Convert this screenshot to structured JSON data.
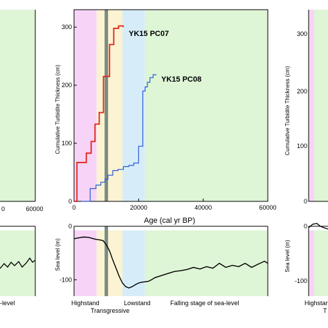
{
  "chart_data": [
    {
      "type": "line",
      "title": "",
      "xlabel": "Age (cal yr BP)",
      "ylabel": "Cumulative Turbidite Thickness (cm)",
      "xlim": [
        0,
        60000
      ],
      "ylim": [
        0,
        330
      ],
      "x_ticks": [
        0,
        20000,
        40000,
        60000
      ],
      "y_ticks": [
        0,
        100,
        200,
        300
      ],
      "grid": false,
      "series": [
        {
          "name": "YK15 PC07",
          "color": "#e0231a",
          "x": [
            0,
            900,
            900,
            3800,
            3800,
            5300,
            5300,
            6500,
            6500,
            7800,
            7800,
            9100,
            9100,
            11000,
            11000,
            12300,
            12300,
            13800,
            13800,
            15200,
            15200
          ],
          "y": [
            0,
            0,
            67,
            67,
            83,
            83,
            103,
            103,
            133,
            133,
            153,
            153,
            215,
            215,
            270,
            270,
            298,
            298,
            302,
            302,
            300
          ]
        },
        {
          "name": "YK15 PC08",
          "color": "#2a5bd7",
          "x": [
            2300,
            5000,
            5000,
            6800,
            6800,
            8300,
            8300,
            9600,
            9600,
            10500,
            10500,
            12000,
            12000,
            13600,
            13600,
            15300,
            15300,
            17000,
            17000,
            18500,
            18500,
            20000,
            20000,
            21300,
            21300,
            22000,
            22000,
            22700,
            22700,
            23500,
            23500,
            24500,
            24500,
            25500
          ],
          "y": [
            0,
            0,
            22,
            22,
            28,
            28,
            33,
            33,
            38,
            38,
            45,
            45,
            53,
            53,
            55,
            55,
            60,
            60,
            62,
            62,
            66,
            66,
            95,
            95,
            190,
            190,
            197,
            197,
            205,
            205,
            213,
            213,
            218,
            218
          ]
        }
      ],
      "annotations": [
        "YK15 PC07",
        "YK15 PC08"
      ]
    },
    {
      "type": "line",
      "title": "",
      "xlabel": "",
      "ylabel": "Sea level (m)",
      "xlim": [
        0,
        60000
      ],
      "ylim": [
        -140,
        20
      ],
      "y_ticks": [
        -100,
        0
      ],
      "grid": false,
      "series": [
        {
          "name": "",
          "color": "#000000",
          "x": [
            0,
            1500,
            3000,
            4500,
            6000,
            7000,
            8000,
            9000,
            10000,
            11000,
            12000,
            13000,
            14000,
            15000,
            16000,
            17000,
            18000,
            19000,
            20000,
            21000,
            22000,
            23000,
            24000,
            25000,
            27000,
            29000,
            31000,
            33000,
            35000,
            37000,
            39000,
            41000,
            43000,
            45000,
            47000,
            49000,
            51000,
            53000,
            55000,
            57000,
            59000,
            60000
          ],
          "y": [
            0,
            2,
            4,
            3,
            0,
            -2,
            -3,
            -5,
            -15,
            -30,
            -52,
            -72,
            -92,
            -108,
            -117,
            -120,
            -117,
            -112,
            -108,
            -106,
            -105,
            -104,
            -100,
            -95,
            -90,
            -85,
            -80,
            -78,
            -75,
            -70,
            -74,
            -68,
            -72,
            -60,
            -70,
            -65,
            -68,
            -60,
            -70,
            -62,
            -55,
            -60
          ]
        }
      ]
    }
  ],
  "zones": [
    {
      "name": "Highstand",
      "x0": 0,
      "x1": 7000,
      "color": "#f7d4f7"
    },
    {
      "name": "Transgressive",
      "x0": 7000,
      "x1": 15000,
      "color": "#fbf3d2"
    },
    {
      "name": "Lowstand",
      "x0": 15000,
      "x1": 22000,
      "color": "#d6edf9"
    },
    {
      "name": "Falling stage of sea-level",
      "x0": 22000,
      "x1": 60000,
      "color": "#def5d6"
    }
  ],
  "marker_line_x": 10000,
  "side_panel_left": {
    "tick_labels": [
      "0",
      "60000"
    ],
    "sea_label": "-level"
  },
  "side_panel_right": {
    "y_tick_labels": [
      "0",
      "100",
      "200",
      "300"
    ],
    "ylabel": "Cumulative Turbidite Thickness (cm)",
    "sea_ylabel": "Sea level (m)",
    "sea_ticks": [
      "0",
      "-100"
    ],
    "bottom_labels": [
      "Highstan",
      "T"
    ]
  },
  "colors": {
    "axis": "#000000",
    "marker_line": "#7a8c82",
    "pc07": "#e0231a",
    "pc08": "#2a5bd7"
  }
}
